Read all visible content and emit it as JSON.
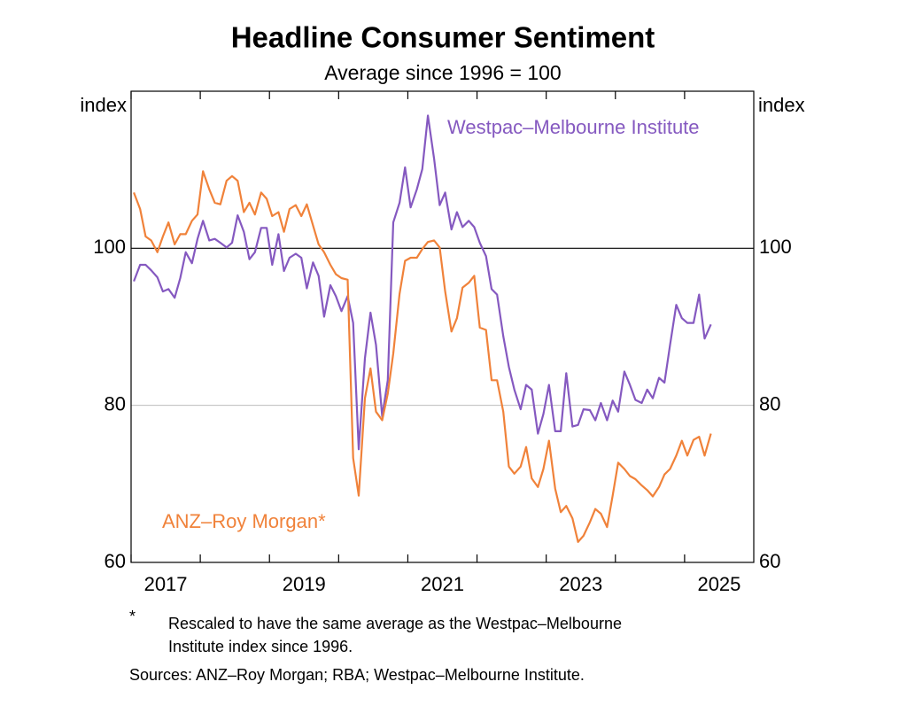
{
  "chart_data": {
    "type": "line",
    "title": "Headline Consumer Sentiment",
    "subtitle": "Average since 1996 = 100",
    "y_label": "index",
    "x": [
      2017.04,
      2017.13,
      2017.21,
      2017.29,
      2017.38,
      2017.46,
      2017.54,
      2017.63,
      2017.71,
      2017.79,
      2017.88,
      2017.96,
      2018.04,
      2018.13,
      2018.21,
      2018.29,
      2018.38,
      2018.46,
      2018.54,
      2018.63,
      2018.71,
      2018.79,
      2018.88,
      2018.96,
      2019.04,
      2019.13,
      2019.21,
      2019.29,
      2019.38,
      2019.46,
      2019.54,
      2019.63,
      2019.71,
      2019.79,
      2019.88,
      2019.96,
      2020.04,
      2020.13,
      2020.21,
      2020.29,
      2020.38,
      2020.46,
      2020.54,
      2020.63,
      2020.71,
      2020.79,
      2020.88,
      2020.96,
      2021.04,
      2021.13,
      2021.21,
      2021.29,
      2021.38,
      2021.46,
      2021.54,
      2021.63,
      2021.71,
      2021.79,
      2021.88,
      2021.96,
      2022.04,
      2022.13,
      2022.21,
      2022.29,
      2022.38,
      2022.46,
      2022.54,
      2022.63,
      2022.71,
      2022.79,
      2022.88,
      2022.96,
      2023.04,
      2023.13,
      2023.21,
      2023.29,
      2023.38,
      2023.46,
      2023.54,
      2023.63,
      2023.71,
      2023.79,
      2023.88,
      2023.96,
      2024.04,
      2024.13,
      2024.21,
      2024.29,
      2024.38,
      2024.46,
      2024.54,
      2024.63,
      2024.71,
      2024.79,
      2024.88,
      2024.96,
      2025.04,
      2025.13,
      2025.21,
      2025.29,
      2025.38
    ],
    "series": [
      {
        "name": "Westpac–Melbourne Institute",
        "color": "#8559c0",
        "values": [
          95.8,
          97.9,
          97.9,
          97.2,
          96.3,
          94.5,
          94.8,
          93.7,
          96.2,
          99.5,
          98.1,
          101.2,
          103.5,
          101.0,
          101.2,
          100.7,
          100.1,
          100.7,
          104.2,
          102.1,
          98.6,
          99.5,
          102.6,
          102.6,
          97.9,
          101.8,
          97.1,
          98.8,
          99.3,
          98.8,
          94.9,
          98.2,
          96.5,
          91.3,
          95.3,
          93.9,
          92.0,
          93.9,
          90.5,
          74.4,
          86.0,
          91.8,
          87.7,
          78.6,
          83.2,
          103.3,
          105.8,
          110.3,
          105.2,
          107.5,
          110.1,
          116.9,
          111.4,
          105.5,
          107.1,
          102.4,
          104.6,
          102.7,
          103.5,
          102.7,
          100.7,
          99.0,
          94.8,
          94.1,
          88.8,
          84.9,
          82.0,
          79.5,
          82.6,
          82.0,
          76.4,
          78.9,
          82.6,
          76.7,
          76.7,
          84.1,
          77.3,
          77.5,
          79.5,
          79.4,
          78.1,
          80.3,
          78.1,
          80.6,
          79.2,
          84.3,
          82.6,
          80.7,
          80.3,
          82.0,
          80.9,
          83.5,
          82.9,
          87.7,
          92.8,
          91.1,
          90.5,
          90.5,
          94.1,
          88.5,
          90.3
        ]
      },
      {
        "name": "ANZ–Roy Morgan*",
        "color": "#f0823a",
        "values": [
          107.1,
          105.0,
          101.5,
          101.0,
          99.5,
          101.5,
          103.3,
          100.5,
          101.8,
          101.8,
          103.5,
          104.3,
          109.8,
          107.5,
          105.8,
          105.6,
          108.6,
          109.2,
          108.6,
          104.6,
          105.8,
          104.3,
          107.1,
          106.3,
          104.1,
          104.6,
          102.1,
          105.0,
          105.5,
          104.1,
          105.6,
          102.9,
          100.5,
          99.5,
          97.9,
          96.7,
          96.2,
          96.0,
          73.3,
          68.5,
          80.9,
          84.7,
          79.2,
          78.1,
          81.5,
          86.6,
          94.2,
          98.4,
          98.8,
          98.8,
          99.9,
          100.8,
          101.0,
          100.1,
          94.5,
          89.4,
          91.1,
          95.0,
          95.6,
          96.5,
          89.9,
          89.6,
          83.2,
          83.2,
          79.2,
          72.2,
          71.3,
          72.2,
          74.7,
          70.7,
          69.6,
          71.9,
          75.5,
          69.4,
          66.4,
          67.2,
          65.6,
          62.6,
          63.4,
          65.1,
          66.8,
          66.2,
          64.5,
          68.5,
          72.7,
          71.9,
          71.0,
          70.6,
          69.8,
          69.2,
          68.4,
          69.6,
          71.2,
          71.9,
          73.6,
          75.5,
          73.6,
          75.6,
          76.0,
          73.6,
          76.4
        ]
      }
    ],
    "xlim": [
      2017,
      2026
    ],
    "xticks": [
      2017,
      2019,
      2021,
      2023,
      2025
    ],
    "xminor_ticks": [
      2018,
      2020,
      2022,
      2024
    ],
    "ylim": [
      60,
      120
    ],
    "yticks": [
      60,
      80,
      100
    ],
    "grid": true,
    "reference_line": 100,
    "footnote_marker": "*",
    "footnote": [
      "Rescaled to have the same average as the Westpac–Melbourne",
      "Institute index since 1996."
    ],
    "sources": "Sources: ANZ–Roy Morgan; RBA; Westpac–Melbourne Institute."
  }
}
